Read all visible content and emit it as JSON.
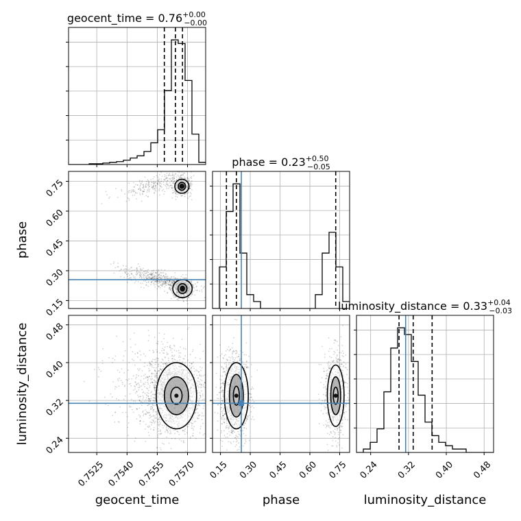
{
  "chart_data": {
    "type": "corner",
    "parameters": [
      "geocent_time",
      "phase",
      "luminosity_distance"
    ],
    "titles": [
      {
        "param": "geocent_time",
        "name": "geocent_time",
        "median": "0.76",
        "plus": "+0.00",
        "minus": "−0.00"
      },
      {
        "param": "phase",
        "name": "phase",
        "median": "0.23",
        "plus": "+0.50",
        "minus": "−0.05"
      },
      {
        "param": "luminosity_distance",
        "name": "luminosity_distance",
        "median": "0.33",
        "plus": "+0.04",
        "minus": "−0.03"
      }
    ],
    "ranges": {
      "geocent_time": [
        0.7511,
        0.7579
      ],
      "phase": [
        0.11,
        0.8
      ],
      "luminosity_distance": [
        0.21,
        0.5
      ]
    },
    "ticks": {
      "geocent_time": [
        "0.7525",
        "0.7540",
        "0.7555",
        "0.7570"
      ],
      "phase": [
        "0.15",
        "0.30",
        "0.45",
        "0.60",
        "0.75"
      ],
      "luminosity_distance": [
        "0.24",
        "0.32",
        "0.40",
        "0.48"
      ]
    },
    "truths": {
      "geocent_time": null,
      "phase": 0.255,
      "luminosity_distance": 0.314
    },
    "truth_color": "#4682b4",
    "quantiles": {
      "geocent_time": [
        0.75585,
        0.7564,
        0.75675
      ],
      "phase": [
        0.18,
        0.23,
        0.73
      ],
      "luminosity_distance": [
        0.3,
        0.33,
        0.37
      ]
    },
    "histograms": {
      "geocent_time": {
        "edges_start": 0.7511,
        "bin_width": 0.00034,
        "counts": [
          0,
          0,
          0,
          1,
          1,
          2,
          3,
          4,
          6,
          9,
          12,
          18,
          30,
          48,
          102,
          172,
          167,
          116,
          42,
          3
        ]
      },
      "phase": {
        "edges_start": 0.11,
        "bin_width": 0.0345,
        "counts": [
          0,
          6,
          14,
          18,
          8,
          2,
          1,
          0,
          0,
          0,
          0,
          0,
          0,
          0,
          0,
          2,
          8,
          11,
          6,
          1
        ]
      },
      "luminosity_distance": {
        "edges_start": 0.21,
        "bin_width": 0.0145,
        "counts": [
          0,
          1,
          3,
          7,
          18,
          31,
          37,
          35,
          27,
          17,
          9,
          5,
          3,
          2,
          1,
          1,
          0,
          0,
          0,
          0
        ]
      }
    },
    "grid": true,
    "contour_levels": 3
  }
}
